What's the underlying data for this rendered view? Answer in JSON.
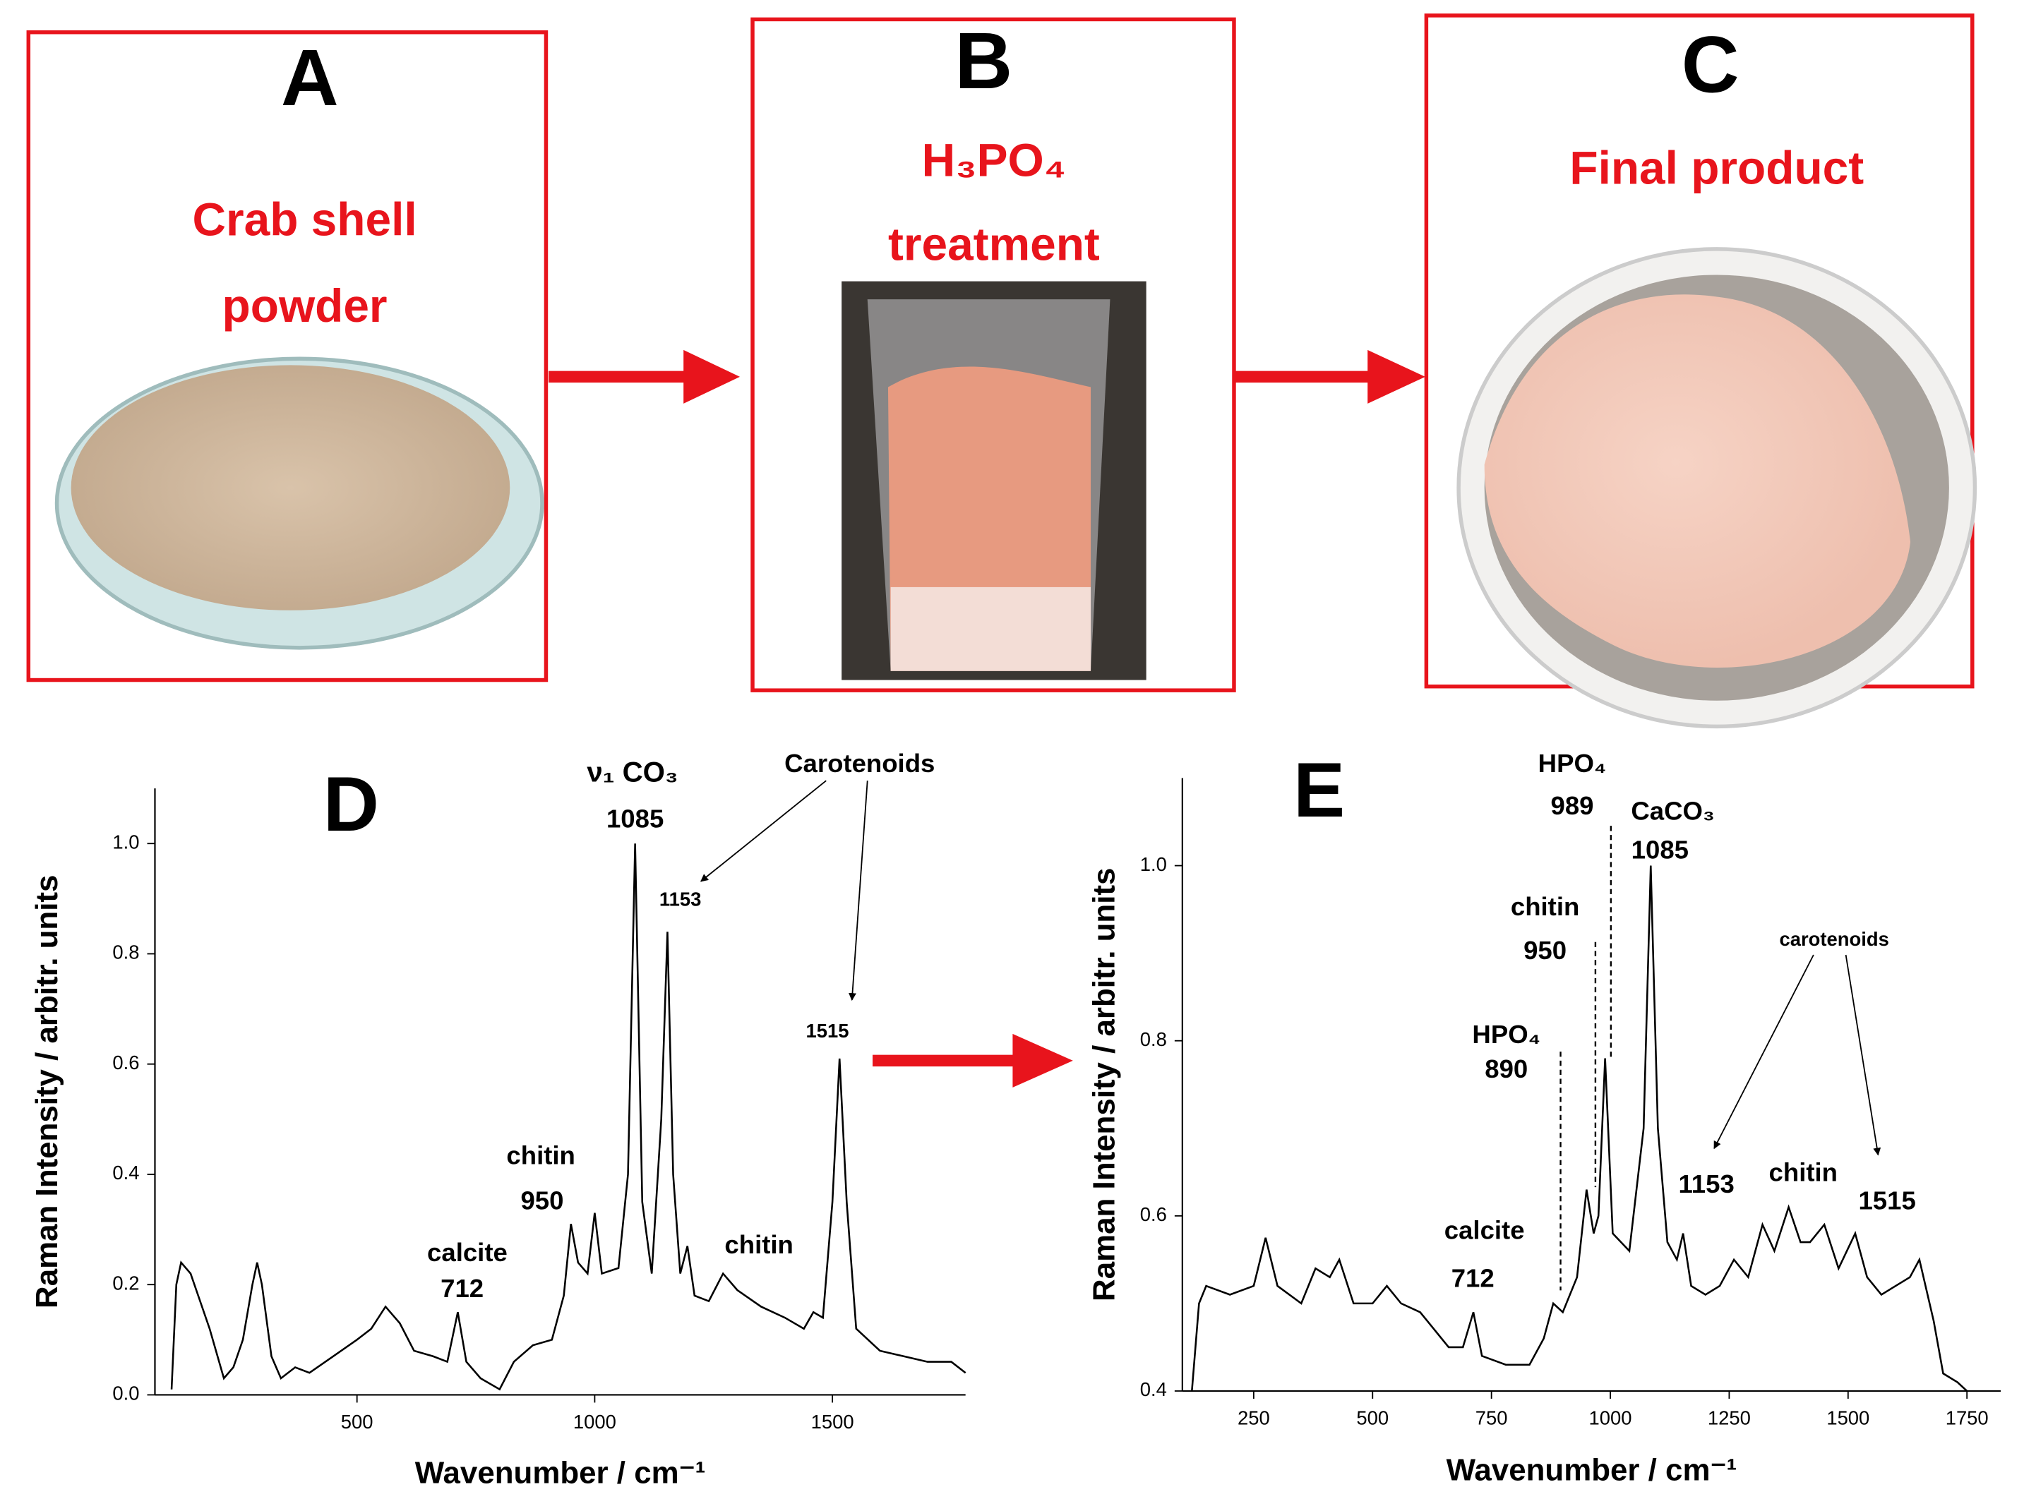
{
  "panels": [
    {
      "letter": "A",
      "title": [
        "Crab shell",
        "powder"
      ]
    },
    {
      "letter": "B",
      "title": [
        "H₃PO₄",
        "treatment"
      ]
    },
    {
      "letter": "C",
      "title": [
        "Final product"
      ]
    }
  ],
  "chart_data": [
    {
      "type": "line",
      "panel": "D",
      "xlabel": "Wavenumber / cm⁻¹",
      "ylabel": "Raman Intensity / arbitr. units",
      "xlim": [
        75,
        1780
      ],
      "ylim": [
        0,
        1.1
      ],
      "xticks": [
        500,
        1000,
        1500
      ],
      "yticks": [
        {
          "value": 0,
          "label": "0.0"
        },
        0.2,
        0.4,
        0.6,
        0.8,
        {
          "value": 1,
          "label": "1.0"
        }
      ],
      "annotations": [
        "ν₁ CO₃",
        "1085",
        "Carotenoids",
        "1153",
        "1515",
        "chitin",
        "950",
        "calcite",
        "712",
        "chitin"
      ],
      "x": [
        110,
        120,
        130,
        150,
        170,
        190,
        220,
        240,
        260,
        280,
        290,
        300,
        320,
        340,
        370,
        400,
        450,
        500,
        530,
        560,
        590,
        620,
        660,
        690,
        712,
        730,
        760,
        800,
        830,
        870,
        910,
        935,
        950,
        965,
        985,
        1000,
        1015,
        1050,
        1070,
        1085,
        1100,
        1120,
        1140,
        1153,
        1165,
        1180,
        1195,
        1210,
        1240,
        1270,
        1300,
        1350,
        1400,
        1440,
        1460,
        1480,
        1500,
        1515,
        1530,
        1550,
        1600,
        1650,
        1700,
        1750,
        1780
      ],
      "series": [
        {
          "color": "#000000",
          "values": [
            0.01,
            0.2,
            0.24,
            0.22,
            0.17,
            0.12,
            0.03,
            0.05,
            0.1,
            0.2,
            0.24,
            0.2,
            0.07,
            0.03,
            0.05,
            0.04,
            0.07,
            0.1,
            0.12,
            0.16,
            0.13,
            0.08,
            0.07,
            0.06,
            0.15,
            0.06,
            0.03,
            0.01,
            0.06,
            0.09,
            0.1,
            0.18,
            0.31,
            0.24,
            0.22,
            0.33,
            0.22,
            0.23,
            0.4,
            1.0,
            0.35,
            0.22,
            0.5,
            0.84,
            0.4,
            0.22,
            0.27,
            0.18,
            0.17,
            0.22,
            0.19,
            0.16,
            0.14,
            0.12,
            0.15,
            0.14,
            0.35,
            0.61,
            0.35,
            0.12,
            0.08,
            0.07,
            0.06,
            0.06,
            0.04
          ]
        }
      ]
    },
    {
      "type": "line",
      "panel": "E",
      "xlabel": "Wavenumber / cm⁻¹",
      "ylabel": "Raman Intensity / arbitr. units",
      "xlim": [
        100,
        1821
      ],
      "ylim": [
        0.4,
        1.1
      ],
      "xticks": [
        250,
        500,
        750,
        1000,
        1250,
        1500,
        1750
      ],
      "yticks": [
        0.4,
        0.6,
        0.8,
        {
          "value": 1,
          "label": "1.0"
        }
      ],
      "annotations": [
        "HPO₄",
        "989",
        "CaCO₃",
        "1085",
        "chitin",
        "950",
        "HPO₄",
        "890",
        "calcite",
        "712",
        "carotenoids",
        "1153",
        "chitin",
        "1515"
      ],
      "x": [
        120,
        135,
        150,
        200,
        250,
        275,
        300,
        350,
        380,
        410,
        430,
        460,
        500,
        530,
        560,
        600,
        630,
        660,
        690,
        712,
        730,
        780,
        830,
        860,
        880,
        900,
        930,
        950,
        965,
        975,
        989,
        1005,
        1040,
        1070,
        1085,
        1100,
        1120,
        1140,
        1153,
        1170,
        1200,
        1230,
        1260,
        1290,
        1320,
        1345,
        1375,
        1400,
        1420,
        1450,
        1480,
        1515,
        1540,
        1570,
        1600,
        1630,
        1650,
        1680,
        1700,
        1730,
        1750
      ],
      "series": [
        {
          "color": "#000000",
          "values": [
            0.4,
            0.5,
            0.52,
            0.51,
            0.52,
            0.575,
            0.52,
            0.5,
            0.54,
            0.53,
            0.55,
            0.5,
            0.5,
            0.52,
            0.5,
            0.49,
            0.47,
            0.45,
            0.45,
            0.49,
            0.44,
            0.43,
            0.43,
            0.46,
            0.5,
            0.49,
            0.53,
            0.63,
            0.58,
            0.6,
            0.78,
            0.58,
            0.56,
            0.7,
            1.0,
            0.7,
            0.57,
            0.55,
            0.58,
            0.52,
            0.51,
            0.52,
            0.55,
            0.53,
            0.59,
            0.56,
            0.61,
            0.57,
            0.57,
            0.59,
            0.54,
            0.58,
            0.53,
            0.51,
            0.52,
            0.53,
            0.55,
            0.48,
            0.42,
            0.41,
            0.4
          ]
        }
      ]
    }
  ]
}
